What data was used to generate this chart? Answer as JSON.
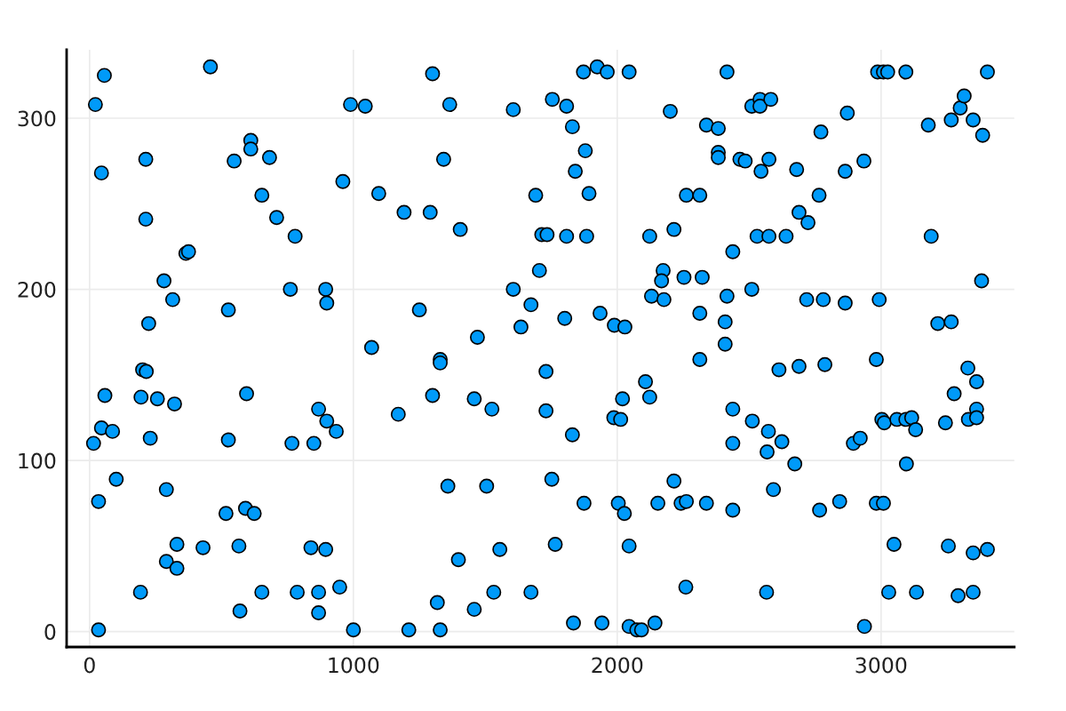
{
  "chart_data": {
    "type": "scatter",
    "color": "#009af9",
    "marker": "circle",
    "grid": true,
    "xlim": [
      -87,
      3505
    ],
    "ylim": [
      -9,
      340
    ],
    "xticks": [
      0,
      1000,
      2000,
      3000
    ],
    "yticks": [
      0,
      100,
      200,
      300
    ],
    "x": [
      56,
      458,
      22,
      989,
      1045,
      45,
      213,
      611,
      611,
      548,
      682,
      960,
      1096,
      653,
      213,
      709,
      779,
      365,
      375,
      282,
      315,
      224,
      526,
      761,
      895,
      899,
      1069,
      201,
      215,
      1300,
      1872,
      1924,
      1962,
      2045,
      1365,
      1606,
      1754,
      1808,
      2201,
      2338,
      1830,
      1879,
      1342,
      1841,
      1192,
      1291,
      1691,
      1893,
      2262,
      2313,
      1405,
      1714,
      1734,
      1808,
      1884,
      2123,
      2215,
      1705,
      2174,
      2168,
      2253,
      2322,
      1606,
      1673,
      1250,
      1801,
      1935,
      1989,
      2029,
      2130,
      2177,
      2313,
      1635,
      1470,
      1329,
      1329,
      1730,
      2313,
      2416,
      2987,
      3009,
      3025,
      3094,
      3403,
      2510,
      2541,
      2541,
      2582,
      2383,
      2872,
      2772,
      3179,
      3266,
      3300,
      3315,
      3349,
      3385,
      2383,
      2383,
      2465,
      2485,
      2545,
      2575,
      2680,
      2864,
      2935,
      2765,
      2689,
      2723,
      2530,
      2575,
      2640,
      3190,
      2438,
      2510,
      2416,
      2409,
      2409,
      2718,
      2781,
      2864,
      2993,
      3381,
      3215,
      3266,
      2613,
      2689,
      2787,
      2982,
      3329,
      58,
      195,
      257,
      322,
      595,
      45,
      87,
      15,
      230,
      526,
      767,
      850,
      868,
      899,
      935,
      1170,
      101,
      34,
      291,
      517,
      591,
      624,
      331,
      430,
      566,
      839,
      895,
      291,
      331,
      193,
      653,
      787,
      868,
      948,
      570,
      868,
      34,
      1000,
      1300,
      1458,
      1525,
      1730,
      1830,
      2107,
      2020,
      2123,
      1987,
      2013,
      1358,
      1505,
      1752,
      1874,
      2004,
      2027,
      2154,
      2215,
      2242,
      2262,
      2338,
      1398,
      1555,
      1765,
      2045,
      1318,
      1458,
      1532,
      1673,
      2260,
      1210,
      1329,
      1834,
      1942,
      2045,
      2074,
      2092,
      2143,
      3362,
      3277,
      2438,
      2512,
      2573,
      2438,
      2568,
      2624,
      2673,
      2895,
      2921,
      3003,
      3012,
      3060,
      3094,
      3116,
      3131,
      3096,
      3244,
      3331,
      3362,
      3362,
      2592,
      2438,
      2767,
      2843,
      2982,
      3009,
      3049,
      3255,
      3349,
      3403,
      2566,
      3029,
      3134,
      3292,
      3349,
      2937
    ],
    "values": [
      325,
      330,
      308,
      308,
      307,
      268,
      276,
      287,
      282,
      275,
      277,
      263,
      256,
      255,
      241,
      242,
      231,
      221,
      222,
      205,
      194,
      180,
      188,
      200,
      200,
      192,
      166,
      153,
      152,
      326,
      327,
      330,
      327,
      327,
      308,
      305,
      311,
      307,
      304,
      296,
      295,
      281,
      276,
      269,
      245,
      245,
      255,
      256,
      255,
      255,
      235,
      232,
      232,
      231,
      231,
      231,
      235,
      211,
      211,
      205,
      207,
      207,
      200,
      191,
      188,
      183,
      186,
      179,
      178,
      196,
      194,
      186,
      178,
      172,
      159,
      157,
      152,
      159,
      327,
      327,
      327,
      327,
      327,
      327,
      307,
      311,
      307,
      311,
      294,
      303,
      292,
      296,
      299,
      306,
      313,
      299,
      290,
      280,
      277,
      276,
      275,
      269,
      276,
      270,
      269,
      275,
      255,
      245,
      239,
      231,
      231,
      231,
      231,
      222,
      200,
      196,
      181,
      168,
      194,
      194,
      192,
      194,
      205,
      180,
      181,
      153,
      155,
      156,
      159,
      154,
      138,
      137,
      136,
      133,
      139,
      119,
      117,
      110,
      113,
      112,
      110,
      110,
      130,
      123,
      117,
      127,
      89,
      76,
      83,
      69,
      72,
      69,
      51,
      49,
      50,
      49,
      48,
      41,
      37,
      23,
      23,
      23,
      23,
      26,
      12,
      11,
      1,
      1,
      138,
      136,
      130,
      129,
      115,
      146,
      136,
      137,
      125,
      124,
      85,
      85,
      89,
      75,
      75,
      69,
      75,
      88,
      75,
      76,
      75,
      42,
      48,
      51,
      50,
      17,
      13,
      23,
      23,
      26,
      1,
      1,
      5,
      5,
      3,
      1,
      1,
      5,
      146,
      139,
      130,
      123,
      117,
      110,
      105,
      111,
      98,
      110,
      113,
      124,
      122,
      124,
      124,
      125,
      118,
      98,
      122,
      124,
      130,
      125,
      83,
      71,
      71,
      76,
      75,
      75,
      51,
      50,
      46,
      48,
      23,
      23,
      23,
      21,
      23,
      3
    ]
  }
}
